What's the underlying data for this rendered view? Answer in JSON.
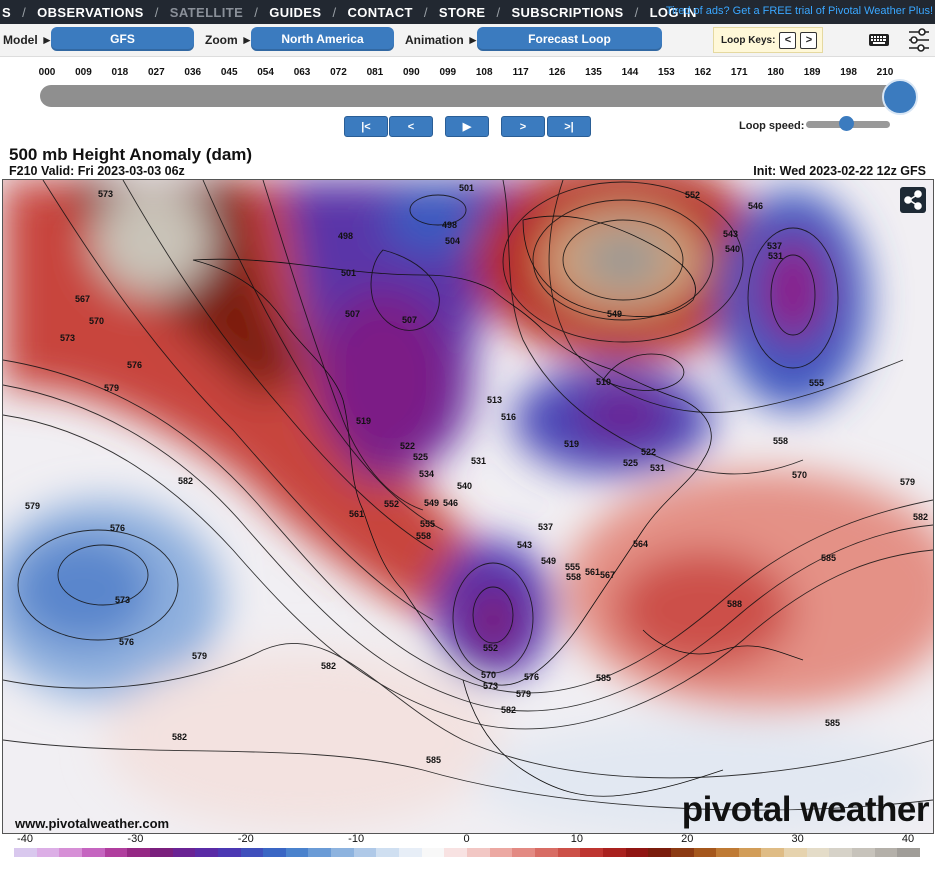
{
  "nav": {
    "items": [
      "S",
      "OBSERVATIONS",
      "SATELLITE",
      "GUIDES",
      "CONTACT",
      "STORE",
      "SUBSCRIPTIONS",
      "LOG IN"
    ],
    "promo": "Tired of ads? Get a FREE trial of Pivotal Weather Plus!"
  },
  "controls": {
    "model_label": "Model ►",
    "model_value": "GFS",
    "zoom_label": "Zoom ►",
    "zoom_value": "North America",
    "animation_label": "Animation ►",
    "animation_value": "Forecast Loop",
    "loop_keys_label": "Loop Keys:",
    "loop_key_prev": "<",
    "loop_key_next": ">",
    "keyboard_icon": "keyboard-icon",
    "settings_icon": "sliders-icon"
  },
  "timeline": {
    "hours": [
      "000",
      "009",
      "018",
      "027",
      "036",
      "045",
      "054",
      "063",
      "072",
      "081",
      "090",
      "099",
      "108",
      "117",
      "126",
      "135",
      "144",
      "153",
      "162",
      "171",
      "180",
      "189",
      "198",
      "210"
    ],
    "selected_hour": "210",
    "progress": 1.0
  },
  "playback": {
    "first": "|<",
    "prev": "<",
    "play": "▶",
    "next": ">",
    "last": ">|",
    "loop_speed_label": "Loop speed:",
    "loop_speed_fraction": 0.5
  },
  "map": {
    "title": "500 mb Height Anomaly (dam)",
    "valid": "F210 Valid: Fri 2023-03-03 06z",
    "init": "Init: Wed 2023-02-22 12z GFS",
    "website": "www.pivotalweather.com",
    "brand": "pivotal weather",
    "share_icon": "share-icon",
    "contour_labels": [
      "573",
      "567",
      "570",
      "573",
      "576",
      "579",
      "582",
      "579",
      "576",
      "573",
      "576",
      "579",
      "582",
      "582",
      "585",
      "501",
      "498",
      "498",
      "504",
      "501",
      "507",
      "507",
      "519",
      "522",
      "525",
      "531",
      "534",
      "552",
      "549",
      "546",
      "555",
      "558",
      "561",
      "513",
      "516",
      "510",
      "519",
      "522",
      "525",
      "531",
      "537",
      "540",
      "543",
      "549",
      "555",
      "558",
      "561",
      "564",
      "567",
      "552",
      "570",
      "573",
      "576",
      "579",
      "582",
      "585",
      "588",
      "543",
      "540",
      "537",
      "531",
      "546",
      "549",
      "552",
      "555",
      "558",
      "570",
      "579",
      "582",
      "585",
      "585"
    ]
  },
  "colorbar": {
    "ticks": [
      "-40",
      "-30",
      "-20",
      "-10",
      "0",
      "10",
      "20",
      "30",
      "40"
    ],
    "colors": [
      "#d9c8ee",
      "#dcaee6",
      "#d68fd6",
      "#c565c0",
      "#b03e9e",
      "#952884",
      "#7a1f7d",
      "#6a2394",
      "#5a2ba6",
      "#4b38b3",
      "#3f4fbc",
      "#3a66c4",
      "#4a82cd",
      "#6a9bd6",
      "#8db3df",
      "#afc9e8",
      "#cfdff1",
      "#e7eef7",
      "#f8f8f8",
      "#f8e2e2",
      "#f2c7c4",
      "#eca8a2",
      "#e38a83",
      "#d86c64",
      "#cc5048",
      "#be3530",
      "#a9211e",
      "#901512",
      "#7a1c0c",
      "#8c3a12",
      "#a5571c",
      "#bf7a34",
      "#d29d58",
      "#dfbc85",
      "#e6d3ae",
      "#e4dcc8",
      "#d6d2c8",
      "#c7c3bb",
      "#b4b0a9",
      "#a09d98"
    ]
  }
}
